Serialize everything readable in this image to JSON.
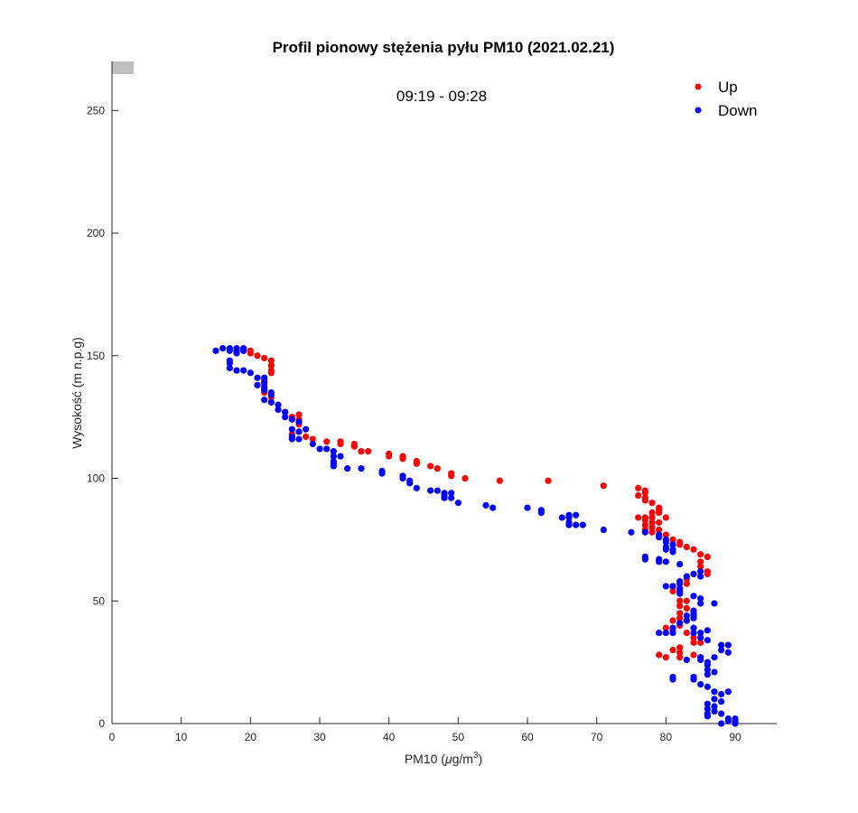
{
  "chart_data": {
    "type": "scatter",
    "title": "Profil pionowy stężenia pyłu PM10 (2021.02.21)",
    "annotation": "09:19 - 09:28",
    "xlabel": "PM10 (μg/m³)",
    "xlabel_parts": {
      "main": "PM10 (",
      "mu": "μ",
      "unit": "g/m",
      "sup": "3",
      "close": ")"
    },
    "ylabel": "Wysokość (m n.p.g)",
    "xlim": [
      0,
      96
    ],
    "ylim": [
      0,
      270
    ],
    "xticks": [
      0,
      10,
      20,
      30,
      40,
      50,
      60,
      70,
      80,
      90
    ],
    "yticks": [
      0,
      50,
      100,
      150,
      200,
      250
    ],
    "grid": false,
    "legend_position": "top-right",
    "series": [
      {
        "name": "Up",
        "color": "#ff0000",
        "points": [
          [
            19,
            153
          ],
          [
            20,
            152
          ],
          [
            20,
            151
          ],
          [
            21,
            150
          ],
          [
            22,
            149
          ],
          [
            23,
            148
          ],
          [
            23,
            146
          ],
          [
            23,
            144
          ],
          [
            23,
            143
          ],
          [
            22,
            140
          ],
          [
            22,
            138
          ],
          [
            22,
            135
          ],
          [
            23,
            133
          ],
          [
            23,
            131
          ],
          [
            24,
            128
          ],
          [
            25,
            127
          ],
          [
            26,
            125
          ],
          [
            27,
            126
          ],
          [
            27,
            124
          ],
          [
            27,
            122
          ],
          [
            28,
            117
          ],
          [
            29,
            116
          ],
          [
            26,
            118
          ],
          [
            27,
            119
          ],
          [
            31,
            115
          ],
          [
            33,
            115
          ],
          [
            33,
            114
          ],
          [
            35,
            114
          ],
          [
            35,
            113
          ],
          [
            36,
            111
          ],
          [
            37,
            111
          ],
          [
            40,
            110
          ],
          [
            40,
            109
          ],
          [
            42,
            109
          ],
          [
            42,
            108
          ],
          [
            44,
            107
          ],
          [
            44,
            106
          ],
          [
            46,
            105
          ],
          [
            47,
            104
          ],
          [
            49,
            102
          ],
          [
            49,
            101
          ],
          [
            51,
            100
          ],
          [
            56,
            99
          ],
          [
            63,
            99
          ],
          [
            71,
            97
          ],
          [
            76,
            96
          ],
          [
            76,
            93
          ],
          [
            77,
            95
          ],
          [
            77,
            94
          ],
          [
            77,
            92
          ],
          [
            78,
            90
          ],
          [
            77,
            91
          ],
          [
            79,
            88
          ],
          [
            79,
            87
          ],
          [
            78,
            86
          ],
          [
            79,
            86
          ],
          [
            76,
            84
          ],
          [
            77,
            84
          ],
          [
            77,
            83
          ],
          [
            78,
            84
          ],
          [
            78,
            82
          ],
          [
            79,
            82
          ],
          [
            80,
            84
          ],
          [
            77,
            81
          ],
          [
            78,
            80
          ],
          [
            77,
            79
          ],
          [
            78,
            78
          ],
          [
            79,
            79
          ],
          [
            80,
            77
          ],
          [
            81,
            75
          ],
          [
            82,
            74
          ],
          [
            82,
            73
          ],
          [
            83,
            72
          ],
          [
            84,
            71
          ],
          [
            85,
            69
          ],
          [
            86,
            68
          ],
          [
            85,
            66
          ],
          [
            85,
            64
          ],
          [
            86,
            62
          ],
          [
            86,
            61
          ],
          [
            83,
            59
          ],
          [
            83,
            57
          ],
          [
            81,
            56
          ],
          [
            82,
            55
          ],
          [
            81,
            54
          ],
          [
            82,
            53
          ],
          [
            82,
            50
          ],
          [
            83,
            50
          ],
          [
            82,
            48
          ],
          [
            83,
            47
          ],
          [
            82,
            45
          ],
          [
            82,
            43
          ],
          [
            83,
            42
          ],
          [
            81,
            42
          ],
          [
            82,
            40
          ],
          [
            80,
            39
          ],
          [
            81,
            38
          ],
          [
            83,
            37
          ],
          [
            84,
            35
          ],
          [
            84,
            33
          ],
          [
            85,
            33
          ],
          [
            79,
            28
          ],
          [
            80,
            27
          ],
          [
            81,
            30
          ],
          [
            82,
            31
          ],
          [
            82,
            29
          ],
          [
            82,
            27
          ],
          [
            84,
            28
          ],
          [
            85,
            27
          ]
        ]
      },
      {
        "name": "Down",
        "color": "#0000ff",
        "points": [
          [
            15,
            152
          ],
          [
            16,
            153
          ],
          [
            17,
            153
          ],
          [
            17,
            152
          ],
          [
            18,
            153
          ],
          [
            18,
            152
          ],
          [
            18,
            151
          ],
          [
            19,
            153
          ],
          [
            19,
            152
          ],
          [
            17,
            148
          ],
          [
            17,
            147
          ],
          [
            17,
            145
          ],
          [
            18,
            144
          ],
          [
            19,
            144
          ],
          [
            20,
            143
          ],
          [
            21,
            141
          ],
          [
            22,
            141
          ],
          [
            22,
            139
          ],
          [
            21,
            138
          ],
          [
            22,
            137
          ],
          [
            22,
            136
          ],
          [
            23,
            135
          ],
          [
            23,
            134
          ],
          [
            22,
            132
          ],
          [
            23,
            131
          ],
          [
            24,
            130
          ],
          [
            24,
            128
          ],
          [
            25,
            127
          ],
          [
            25,
            125
          ],
          [
            26,
            124
          ],
          [
            27,
            123
          ],
          [
            28,
            120
          ],
          [
            26,
            120
          ],
          [
            27,
            119
          ],
          [
            26,
            117
          ],
          [
            26,
            116
          ],
          [
            27,
            116
          ],
          [
            29,
            114
          ],
          [
            30,
            112
          ],
          [
            31,
            112
          ],
          [
            32,
            111
          ],
          [
            32,
            109
          ],
          [
            33,
            109
          ],
          [
            32,
            107
          ],
          [
            32,
            106
          ],
          [
            32,
            105
          ],
          [
            34,
            104
          ],
          [
            36,
            104
          ],
          [
            39,
            103
          ],
          [
            39,
            102
          ],
          [
            42,
            101
          ],
          [
            42,
            100
          ],
          [
            43,
            99
          ],
          [
            43,
            98
          ],
          [
            44,
            96
          ],
          [
            46,
            95
          ],
          [
            47,
            95
          ],
          [
            48,
            94
          ],
          [
            48,
            93
          ],
          [
            48,
            92
          ],
          [
            49,
            94
          ],
          [
            49,
            92
          ],
          [
            50,
            90
          ],
          [
            54,
            89
          ],
          [
            55,
            88
          ],
          [
            60,
            88
          ],
          [
            62,
            87
          ],
          [
            62,
            86
          ],
          [
            65,
            84
          ],
          [
            66,
            85
          ],
          [
            66,
            84
          ],
          [
            67,
            85
          ],
          [
            66,
            82
          ],
          [
            66,
            81
          ],
          [
            67,
            81
          ],
          [
            68,
            81
          ],
          [
            71,
            79
          ],
          [
            75,
            78
          ],
          [
            77,
            78
          ],
          [
            77,
            68
          ],
          [
            77,
            67
          ],
          [
            79,
            77
          ],
          [
            79,
            76
          ],
          [
            80,
            75
          ],
          [
            80,
            74
          ],
          [
            80,
            72
          ],
          [
            81,
            73
          ],
          [
            80,
            71
          ],
          [
            81,
            71
          ],
          [
            81,
            70
          ],
          [
            79,
            67
          ],
          [
            79,
            66
          ],
          [
            80,
            66
          ],
          [
            82,
            65
          ],
          [
            83,
            60
          ],
          [
            84,
            61
          ],
          [
            85,
            60
          ],
          [
            85,
            62
          ],
          [
            82,
            58
          ],
          [
            82,
            57
          ],
          [
            82,
            55
          ],
          [
            82,
            54
          ],
          [
            82,
            53
          ],
          [
            80,
            56
          ],
          [
            81,
            56
          ],
          [
            84,
            52
          ],
          [
            85,
            51
          ],
          [
            85,
            49
          ],
          [
            87,
            49
          ],
          [
            84,
            46
          ],
          [
            84,
            45
          ],
          [
            84,
            44
          ],
          [
            84,
            43
          ],
          [
            83,
            44
          ],
          [
            83,
            42
          ],
          [
            82,
            41
          ],
          [
            81,
            39
          ],
          [
            80,
            37
          ],
          [
            79,
            37
          ],
          [
            81,
            37
          ],
          [
            84,
            39
          ],
          [
            84,
            37
          ],
          [
            85,
            37
          ],
          [
            85,
            35
          ],
          [
            86,
            38
          ],
          [
            86,
            34
          ],
          [
            87,
            27
          ],
          [
            88,
            32
          ],
          [
            88,
            30
          ],
          [
            89,
            32
          ],
          [
            89,
            29
          ],
          [
            85,
            27
          ],
          [
            85,
            26
          ],
          [
            83,
            26
          ],
          [
            86,
            25
          ],
          [
            86,
            24
          ],
          [
            86,
            22
          ],
          [
            86,
            20
          ],
          [
            87,
            21
          ],
          [
            84,
            19
          ],
          [
            84,
            18
          ],
          [
            81,
            19
          ],
          [
            81,
            18
          ],
          [
            85,
            16
          ],
          [
            86,
            15
          ],
          [
            87,
            13
          ],
          [
            88,
            12
          ],
          [
            89,
            13
          ],
          [
            87,
            10
          ],
          [
            88,
            9
          ],
          [
            86,
            8
          ],
          [
            86,
            6
          ],
          [
            86,
            4
          ],
          [
            86,
            3
          ],
          [
            87,
            7
          ],
          [
            87,
            5
          ],
          [
            88,
            4
          ],
          [
            88,
            0
          ],
          [
            89,
            2
          ],
          [
            89,
            1
          ],
          [
            90,
            2
          ],
          [
            90,
            1
          ],
          [
            90,
            0
          ]
        ]
      }
    ]
  }
}
